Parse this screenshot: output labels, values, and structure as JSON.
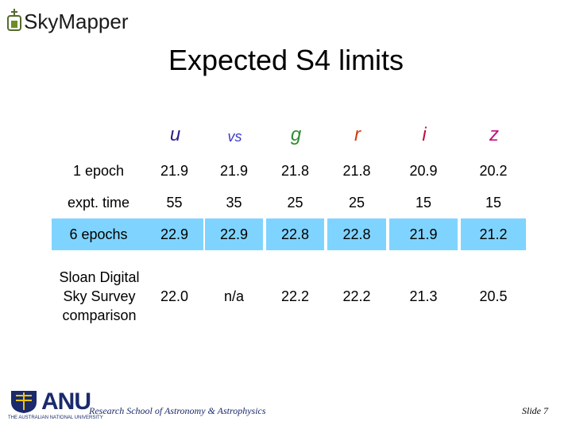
{
  "header": {
    "brand": "SkyMapper",
    "title": "Expected S4 limits"
  },
  "table": {
    "columns": [
      "u",
      "vs",
      "g",
      "r",
      "i",
      "z"
    ],
    "rows": [
      {
        "label": "1 epoch",
        "cells": [
          "21.9",
          "21.9",
          "21.8",
          "21.8",
          "20.9",
          "20.2"
        ]
      },
      {
        "label": "expt. time",
        "cells": [
          "55",
          "35",
          "25",
          "25",
          "15",
          "15"
        ]
      },
      {
        "label": "6 epochs",
        "cells": [
          "22.9",
          "22.9",
          "22.8",
          "22.8",
          "21.9",
          "21.2"
        ]
      },
      {
        "label": "Sloan Digital Sky Survey comparison",
        "cells": [
          "22.0",
          "n/a",
          "22.2",
          "22.2",
          "21.3",
          "20.5"
        ]
      }
    ]
  },
  "footer": {
    "logo": "ANU",
    "logo_sub": "THE AUSTRALIAN NATIONAL UNIVERSITY",
    "school": "Research School of Astronomy & Astrophysics",
    "slide": "Slide 7"
  }
}
